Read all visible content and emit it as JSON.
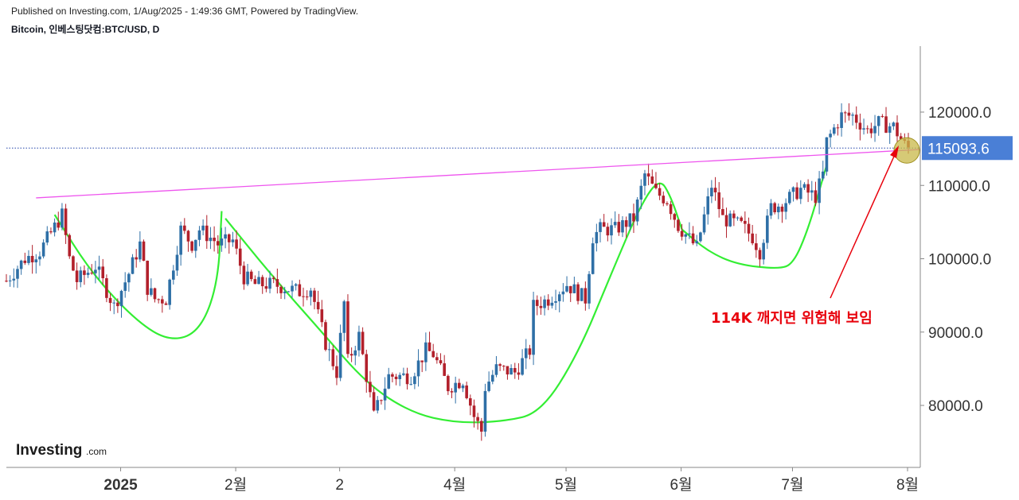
{
  "header": {
    "published": "Published on Investing.com, 1/Aug/2025 - 1:49:36 GMT, Powered by TradingView.",
    "symbol": "Bitcoin, 인베스팅닷컴:BTC/USD, D"
  },
  "logo": {
    "word": "Investing",
    "suffix": ".com"
  },
  "annotation": {
    "text": "114K 깨지면 위험해 보임",
    "color": "#e8000b"
  },
  "current_price": {
    "label": "115093.6",
    "value": 115093.6,
    "color": "#4a7fd6"
  },
  "colors": {
    "bull": "#2e6fa6",
    "bear": "#b2202b",
    "pattern_curve": "#33ee33",
    "trendline": "#ee55ee",
    "price_line": "#2244aa",
    "marker": "#c8b848"
  },
  "chart_data": {
    "type": "candlestick",
    "title": "Bitcoin, 인베스팅닷컴:BTC/USD, D",
    "y_ticks": [
      "120000.0",
      "110000.0",
      "100000.0",
      "90000.0",
      "80000.0"
    ],
    "y_tick_values": [
      120000,
      110000,
      100000,
      90000,
      80000
    ],
    "x_ticks": [
      "2025",
      "2월",
      "2",
      "4월",
      "5월",
      "6월",
      "7월",
      "8월"
    ],
    "x_tick_dates": [
      "2025-01-01",
      "2025-02-01",
      "2025-03-01",
      "2025-04-01",
      "2025-05-01",
      "2025-06-01",
      "2025-07-01",
      "2025-08-01"
    ],
    "x_range": [
      "2024-12-01",
      "2025-08-01"
    ],
    "ylim": [
      71000,
      129500
    ],
    "grid": false,
    "trendline": {
      "from": [
        "2024-12-09",
        108300
      ],
      "to": [
        "2025-08-01",
        114900
      ]
    },
    "current_price": 115093.6,
    "close_points": [
      [
        "2024-12-01",
        97000
      ],
      [
        "2024-12-06",
        100000
      ],
      [
        "2024-12-10",
        101000
      ],
      [
        "2024-12-16",
        106000
      ],
      [
        "2024-12-18",
        100000
      ],
      [
        "2024-12-20",
        97000
      ],
      [
        "2024-12-25",
        99000
      ],
      [
        "2024-12-30",
        93500
      ],
      [
        "2025-01-03",
        98000
      ],
      [
        "2025-01-06",
        102000
      ],
      [
        "2025-01-08",
        96000
      ],
      [
        "2025-01-10",
        94500
      ],
      [
        "2025-01-13",
        94500
      ],
      [
        "2025-01-17",
        104000
      ],
      [
        "2025-01-20",
        102000
      ],
      [
        "2025-01-22",
        104000
      ],
      [
        "2025-01-26",
        102500
      ],
      [
        "2025-01-27",
        102000
      ],
      [
        "2025-01-31",
        102500
      ],
      [
        "2025-02-03",
        97500
      ],
      [
        "2025-02-06",
        96500
      ],
      [
        "2025-02-11",
        96500
      ],
      [
        "2025-02-18",
        95500
      ],
      [
        "2025-02-21",
        96000
      ],
      [
        "2025-02-25",
        88500
      ],
      [
        "2025-02-28",
        84500
      ],
      [
        "2025-03-02",
        94000
      ],
      [
        "2025-03-03",
        86000
      ],
      [
        "2025-03-06",
        89500
      ],
      [
        "2025-03-10",
        78500
      ],
      [
        "2025-03-14",
        84000
      ],
      [
        "2025-03-20",
        84000
      ],
      [
        "2025-03-24",
        87500
      ],
      [
        "2025-03-26",
        87000
      ],
      [
        "2025-03-30",
        82500
      ],
      [
        "2025-04-03",
        83500
      ],
      [
        "2025-04-06",
        78500
      ],
      [
        "2025-04-08",
        76500
      ],
      [
        "2025-04-09",
        82500
      ],
      [
        "2025-04-12",
        85000
      ],
      [
        "2025-04-17",
        84500
      ],
      [
        "2025-04-21",
        87500
      ],
      [
        "2025-04-22",
        93500
      ],
      [
        "2025-04-26",
        94500
      ],
      [
        "2025-05-01",
        96500
      ],
      [
        "2025-05-06",
        94500
      ],
      [
        "2025-05-08",
        103000
      ],
      [
        "2025-05-10",
        104000
      ],
      [
        "2025-05-14",
        104000
      ],
      [
        "2025-05-19",
        105500
      ],
      [
        "2025-05-21",
        109500
      ],
      [
        "2025-05-22",
        111500
      ],
      [
        "2025-05-25",
        109000
      ],
      [
        "2025-05-28",
        108000
      ],
      [
        "2025-05-31",
        104500
      ],
      [
        "2025-06-05",
        101500
      ],
      [
        "2025-06-09",
        110000
      ],
      [
        "2025-06-12",
        105500
      ],
      [
        "2025-06-17",
        104500
      ],
      [
        "2025-06-20",
        103000
      ],
      [
        "2025-06-22",
        101000
      ],
      [
        "2025-06-25",
        107000
      ],
      [
        "2025-06-28",
        107500
      ],
      [
        "2025-07-03",
        109500
      ],
      [
        "2025-07-07",
        108500
      ],
      [
        "2025-07-09",
        111500
      ],
      [
        "2025-07-10",
        116000
      ],
      [
        "2025-07-14",
        119500
      ],
      [
        "2025-07-17",
        119500
      ],
      [
        "2025-07-21",
        117500
      ],
      [
        "2025-07-24",
        118500
      ],
      [
        "2025-07-28",
        118000
      ],
      [
        "2025-07-31",
        115500
      ],
      [
        "2025-08-01",
        115093.6
      ]
    ]
  }
}
